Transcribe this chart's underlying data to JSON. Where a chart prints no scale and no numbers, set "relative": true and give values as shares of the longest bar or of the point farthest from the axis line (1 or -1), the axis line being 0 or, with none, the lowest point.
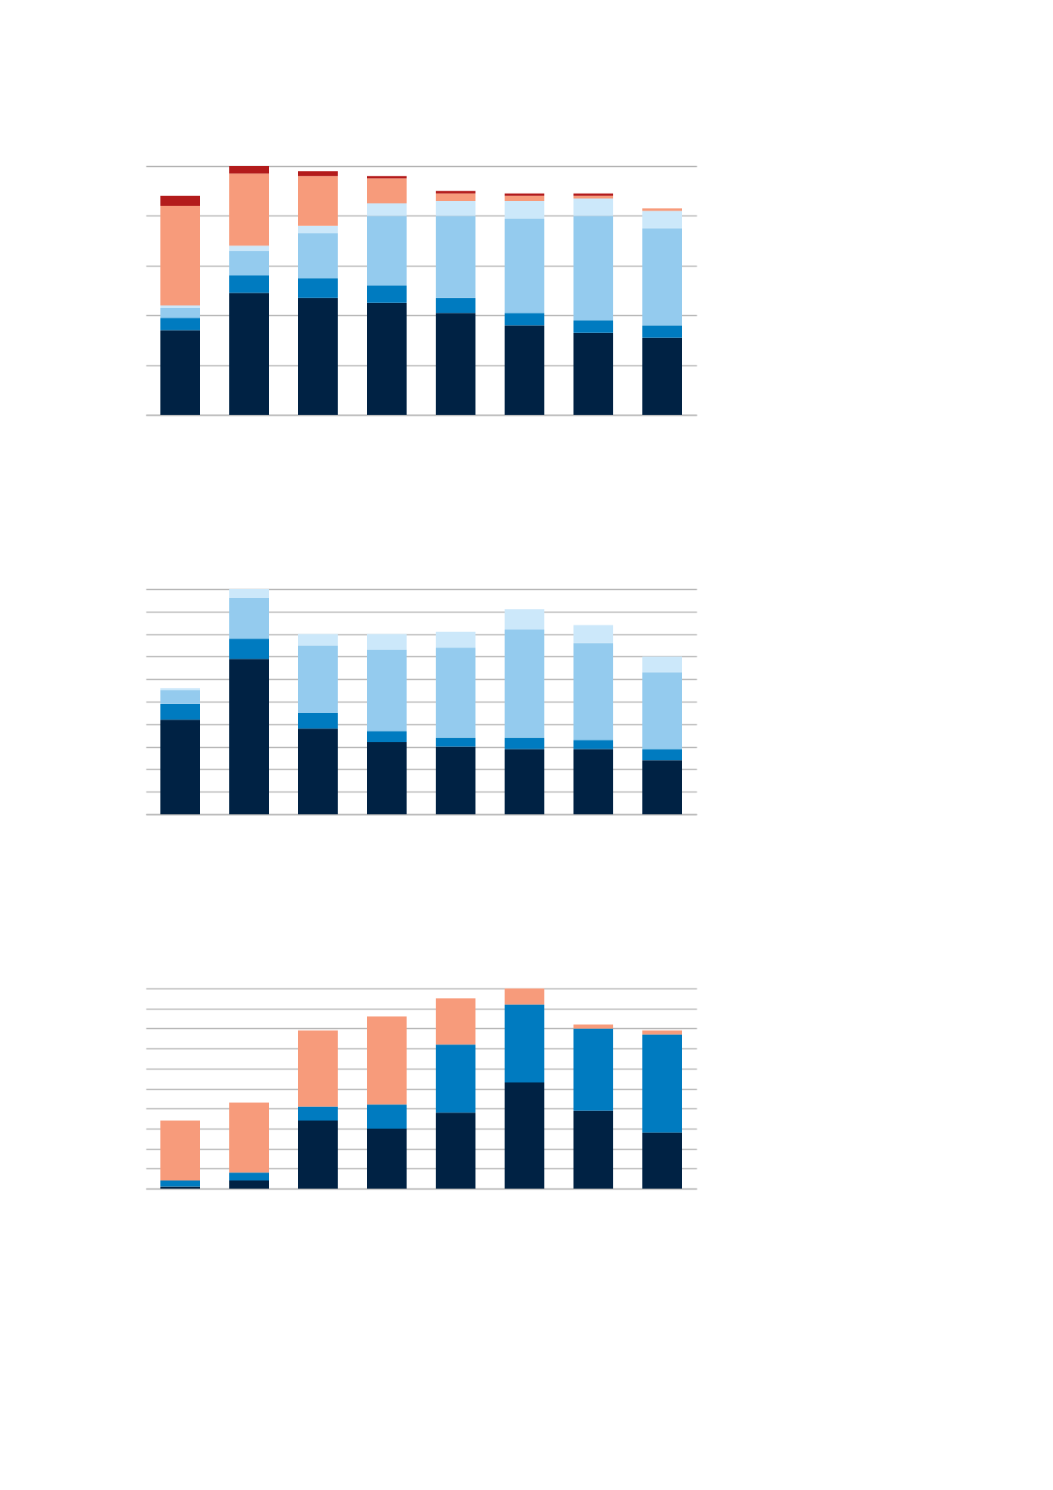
{
  "chart_data": [
    {
      "type": "bar",
      "stacked": true,
      "relative": true,
      "grid": true,
      "categories": [
        null,
        null,
        null,
        null,
        null,
        null,
        null,
        null
      ],
      "series": [
        {
          "color": "#002244",
          "values": [
            0.34,
            0.49,
            0.47,
            0.45,
            0.41,
            0.36,
            0.33,
            0.31
          ]
        },
        {
          "color": "#007bc0",
          "values": [
            0.05,
            0.07,
            0.08,
            0.07,
            0.06,
            0.05,
            0.05,
            0.05
          ]
        },
        {
          "color": "#94cbee",
          "values": [
            0.04,
            0.1,
            0.18,
            0.28,
            0.33,
            0.38,
            0.42,
            0.39
          ]
        },
        {
          "color": "#cce8fa",
          "values": [
            0.01,
            0.02,
            0.03,
            0.05,
            0.06,
            0.07,
            0.07,
            0.07
          ]
        },
        {
          "color": "#f79b7b",
          "values": [
            0.4,
            0.29,
            0.2,
            0.1,
            0.03,
            0.02,
            0.01,
            0.01
          ]
        },
        {
          "color": "#b31b1b",
          "values": [
            0.04,
            0.03,
            0.02,
            0.01,
            0.01,
            0.01,
            0.01,
            0.0
          ]
        }
      ]
    },
    {
      "type": "bar",
      "stacked": true,
      "relative": true,
      "grid": true,
      "categories": [
        null,
        null,
        null,
        null,
        null,
        null,
        null,
        null
      ],
      "series": [
        {
          "color": "#002244",
          "values": [
            0.42,
            0.69,
            0.38,
            0.32,
            0.3,
            0.29,
            0.29,
            0.24
          ]
        },
        {
          "color": "#007bc0",
          "values": [
            0.07,
            0.09,
            0.07,
            0.05,
            0.04,
            0.05,
            0.04,
            0.05
          ]
        },
        {
          "color": "#94cbee",
          "values": [
            0.06,
            0.18,
            0.3,
            0.36,
            0.4,
            0.48,
            0.43,
            0.34
          ]
        },
        {
          "color": "#cce8fa",
          "values": [
            0.01,
            0.04,
            0.05,
            0.07,
            0.07,
            0.09,
            0.08,
            0.07
          ]
        }
      ]
    },
    {
      "type": "bar",
      "stacked": true,
      "relative": true,
      "grid": true,
      "categories": [
        null,
        null,
        null,
        null,
        null,
        null,
        null,
        null
      ],
      "series": [
        {
          "color": "#002244",
          "values": [
            0.01,
            0.04,
            0.34,
            0.3,
            0.38,
            0.53,
            0.39,
            0.28
          ]
        },
        {
          "color": "#007bc0",
          "values": [
            0.03,
            0.04,
            0.07,
            0.12,
            0.34,
            0.39,
            0.41,
            0.49
          ]
        },
        {
          "color": "#f79b7b",
          "values": [
            0.3,
            0.35,
            0.38,
            0.44,
            0.23,
            0.08,
            0.02,
            0.02
          ]
        }
      ]
    }
  ]
}
